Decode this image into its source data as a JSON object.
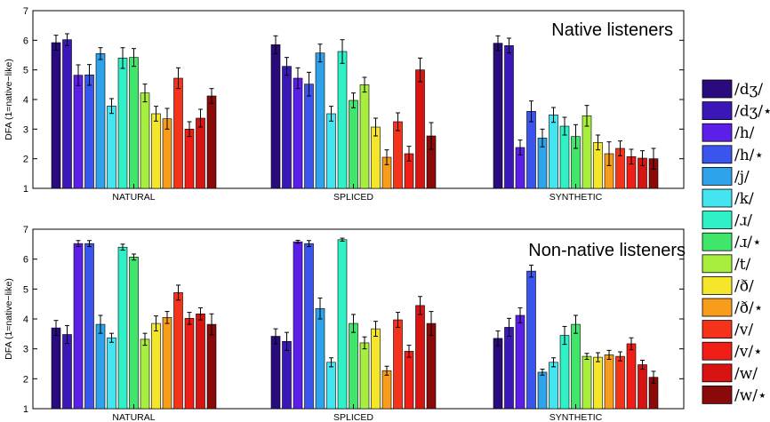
{
  "chart_data": [
    {
      "type": "bar",
      "title": "Native listeners",
      "ylabel": "DFA (1=native−like)",
      "ylim": [
        1,
        7
      ],
      "yticks": [
        1,
        2,
        3,
        4,
        5,
        6,
        7
      ],
      "categories": [
        "NATURAL",
        "SPLICED",
        "SYNTHETIC"
      ],
      "series": [
        {
          "name": "/dʒ/",
          "values": [
            5.92,
            5.85,
            5.9
          ],
          "errors": [
            0.25,
            0.3,
            0.25
          ]
        },
        {
          "name": "/dʒ/⋆",
          "values": [
            6.02,
            5.12,
            5.82
          ],
          "errors": [
            0.2,
            0.3,
            0.25
          ]
        },
        {
          "name": "/h/",
          "values": [
            4.82,
            4.72,
            2.38
          ],
          "errors": [
            0.35,
            0.35,
            0.25
          ]
        },
        {
          "name": "/h/⋆",
          "values": [
            4.83,
            4.52,
            3.6
          ],
          "errors": [
            0.35,
            0.4,
            0.35
          ]
        },
        {
          "name": "/j/",
          "values": [
            5.55,
            5.57,
            2.7
          ],
          "errors": [
            0.2,
            0.3,
            0.3
          ]
        },
        {
          "name": "/k/",
          "values": [
            3.78,
            3.52,
            3.48
          ],
          "errors": [
            0.25,
            0.25,
            0.25
          ]
        },
        {
          "name": "/ɹ/",
          "values": [
            5.4,
            5.62,
            3.1
          ],
          "errors": [
            0.35,
            0.4,
            0.3
          ]
        },
        {
          "name": "/ɹ/⋆",
          "values": [
            5.42,
            3.97,
            2.75
          ],
          "errors": [
            0.3,
            0.25,
            0.4
          ]
        },
        {
          "name": "/t/",
          "values": [
            4.22,
            4.5,
            3.45
          ],
          "errors": [
            0.3,
            0.25,
            0.35
          ]
        },
        {
          "name": "/ð/",
          "values": [
            3.52,
            3.07,
            2.55
          ],
          "errors": [
            0.25,
            0.3,
            0.25
          ]
        },
        {
          "name": "/ð/⋆",
          "values": [
            3.35,
            2.05,
            2.17
          ],
          "errors": [
            0.35,
            0.25,
            0.4
          ]
        },
        {
          "name": "/v/",
          "values": [
            4.72,
            3.25,
            2.35
          ],
          "errors": [
            0.35,
            0.3,
            0.25
          ]
        },
        {
          "name": "/v/⋆",
          "values": [
            3.0,
            2.17,
            2.07
          ],
          "errors": [
            0.25,
            0.25,
            0.25
          ]
        },
        {
          "name": "/w/",
          "values": [
            3.37,
            5.0,
            2.02
          ],
          "errors": [
            0.3,
            0.4,
            0.25
          ]
        },
        {
          "name": "/w/⋆",
          "values": [
            4.12,
            2.77,
            2.0
          ],
          "errors": [
            0.25,
            0.45,
            0.35
          ]
        }
      ]
    },
    {
      "type": "bar",
      "title": "Non-native listeners",
      "ylabel": "DFA (1=native−like)",
      "ylim": [
        1,
        7
      ],
      "yticks": [
        1,
        2,
        3,
        4,
        5,
        6,
        7
      ],
      "categories": [
        "NATURAL",
        "SPLICED",
        "SYNTHETIC"
      ],
      "series": [
        {
          "name": "/dʒ/",
          "values": [
            3.7,
            3.42,
            3.35
          ],
          "errors": [
            0.25,
            0.25,
            0.25
          ]
        },
        {
          "name": "/dʒ/⋆",
          "values": [
            3.48,
            3.25,
            3.72
          ],
          "errors": [
            0.3,
            0.3,
            0.3
          ]
        },
        {
          "name": "/h/",
          "values": [
            6.52,
            6.58,
            4.12
          ],
          "errors": [
            0.1,
            0.05,
            0.25
          ]
        },
        {
          "name": "/h/⋆",
          "values": [
            6.52,
            6.52,
            5.6
          ],
          "errors": [
            0.1,
            0.1,
            0.2
          ]
        },
        {
          "name": "/j/",
          "values": [
            3.82,
            4.35,
            2.22
          ],
          "errors": [
            0.3,
            0.35,
            0.1
          ]
        },
        {
          "name": "/k/",
          "values": [
            3.37,
            2.55,
            2.55
          ],
          "errors": [
            0.15,
            0.15,
            0.15
          ]
        },
        {
          "name": "/ɹ/",
          "values": [
            6.4,
            6.65,
            3.45
          ],
          "errors": [
            0.1,
            0.05,
            0.3
          ]
        },
        {
          "name": "/ɹ/⋆",
          "values": [
            6.07,
            3.85,
            3.82
          ],
          "errors": [
            0.1,
            0.3,
            0.3
          ]
        },
        {
          "name": "/t/",
          "values": [
            3.32,
            3.2,
            2.75
          ],
          "errors": [
            0.2,
            0.2,
            0.1
          ]
        },
        {
          "name": "/ð/",
          "values": [
            3.85,
            3.67,
            2.72
          ],
          "errors": [
            0.25,
            0.25,
            0.15
          ]
        },
        {
          "name": "/ð/⋆",
          "values": [
            4.05,
            2.27,
            2.8
          ],
          "errors": [
            0.2,
            0.15,
            0.15
          ]
        },
        {
          "name": "/v/",
          "values": [
            4.88,
            3.97,
            2.75
          ],
          "errors": [
            0.25,
            0.25,
            0.15
          ]
        },
        {
          "name": "/v/⋆",
          "values": [
            4.02,
            2.92,
            3.17
          ],
          "errors": [
            0.2,
            0.2,
            0.2
          ]
        },
        {
          "name": "/w/",
          "values": [
            4.17,
            4.45,
            2.47
          ],
          "errors": [
            0.2,
            0.3,
            0.15
          ]
        },
        {
          "name": "/w/⋆",
          "values": [
            3.82,
            3.85,
            2.05
          ],
          "errors": [
            0.35,
            0.4,
            0.2
          ]
        }
      ]
    }
  ],
  "legend": {
    "placement": "right",
    "colors": [
      "#2a0b7e",
      "#3c17b8",
      "#5c1fe8",
      "#3a55ee",
      "#2fa2ec",
      "#42e5f0",
      "#2ff0c6",
      "#3fe66a",
      "#a8ee3f",
      "#f5e62a",
      "#f89c1c",
      "#f5321a",
      "#f01e16",
      "#d81412",
      "#8a0a0a"
    ]
  }
}
